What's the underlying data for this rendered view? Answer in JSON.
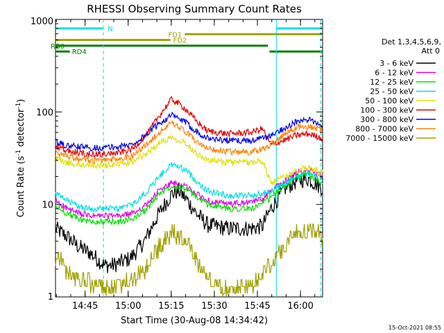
{
  "chart_data": {
    "type": "line",
    "title": "RHESSI Observing Summary Count Rates",
    "xlabel": "Start Time (30-Aug-08 14:34:42)",
    "ylabel_main": "Count Rate (s",
    "ylabel_sup1": "-1",
    "ylabel_mid": " detector",
    "ylabel_sup2": "-1",
    "ylabel_end": ")",
    "footer_date": "15-Oct-2021 08:55",
    "y_scale": "log",
    "ylim": [
      1,
      1000
    ],
    "xlim_minutes": [
      0,
      93
    ],
    "x_ticks": [
      {
        "label": "14:45",
        "minute": 10.3
      },
      {
        "label": "15:00",
        "minute": 25.3
      },
      {
        "label": "15:15",
        "minute": 40.3
      },
      {
        "label": "15:30",
        "minute": 55.3
      },
      {
        "label": "15:45",
        "minute": 70.3
      },
      {
        "label": "16:00",
        "minute": 85.3
      }
    ],
    "y_ticks": [
      {
        "label": "1",
        "value": 1
      },
      {
        "label": "10",
        "value": 10
      },
      {
        "label": "100",
        "value": 100
      },
      {
        "label": "1000",
        "value": 1000
      }
    ],
    "legend_header": [
      "Det 1,3,4,5,6,9,",
      "Att 0"
    ],
    "series": [
      {
        "name": "3 - 6 keV",
        "color": "#000000",
        "minutes": [
          0,
          4,
          8,
          12,
          17,
          20,
          26,
          31,
          35,
          38,
          40.5,
          43,
          46,
          49,
          53,
          60,
          68,
          72,
          75,
          80,
          84,
          88,
          93
        ],
        "values": [
          5.5,
          4.5,
          3.5,
          3,
          2.2,
          2.2,
          2.6,
          4,
          7,
          10,
          13,
          14,
          11,
          8,
          6,
          5.5,
          5.5,
          5.8,
          9,
          15,
          18,
          19,
          15
        ]
      },
      {
        "name": "6 - 12 keV",
        "color": "#e000e0",
        "minutes": [
          0,
          4,
          8,
          12,
          17,
          22,
          27,
          32,
          36,
          40.5,
          45,
          49,
          53,
          60,
          68,
          72,
          75,
          80,
          84,
          88,
          93
        ],
        "values": [
          11,
          9,
          8,
          7.5,
          7.5,
          7.5,
          8,
          10,
          14,
          17,
          16,
          13,
          11,
          10,
          10.5,
          11.5,
          14,
          18,
          22,
          24,
          20
        ]
      },
      {
        "name": "12 - 25 keV",
        "color": "#00e000",
        "minutes": [
          0,
          4,
          8,
          12,
          17,
          22,
          27,
          32,
          36,
          40.5,
          45,
          49,
          53,
          60,
          68,
          72,
          75,
          80,
          84,
          88,
          93
        ],
        "values": [
          9.5,
          8,
          7,
          6.5,
          6.5,
          6.5,
          7,
          9,
          13,
          16,
          15,
          12,
          10,
          9,
          9,
          10,
          12,
          16,
          20,
          21,
          17
        ]
      },
      {
        "name": "25 - 50 keV",
        "color": "#00e0e0",
        "minutes": [
          0,
          4,
          8,
          12,
          17,
          22,
          27,
          32,
          36,
          40.5,
          45,
          49,
          53,
          60,
          68,
          72,
          75,
          80,
          84,
          88,
          93
        ],
        "values": [
          13,
          11,
          9.5,
          9,
          9,
          9,
          10,
          14,
          20,
          27,
          24,
          18,
          14,
          12.5,
          12.5,
          13,
          14,
          17,
          20,
          22,
          19
        ]
      },
      {
        "name": "50 - 100 keV",
        "color": "#e0e000",
        "minutes": [
          0,
          4,
          8,
          12,
          17,
          22,
          27,
          32,
          36,
          40.5,
          45,
          49,
          53,
          60,
          68,
          72,
          75,
          80,
          84,
          88,
          93
        ],
        "values": [
          32,
          28,
          27,
          26.5,
          26.5,
          27,
          29,
          36,
          46,
          54,
          47,
          36,
          30,
          28.5,
          28.5,
          30,
          17,
          20,
          23,
          25,
          22
        ]
      },
      {
        "name": "100 - 300 keV",
        "color": "#e00000",
        "minutes": [
          0,
          4,
          8,
          12,
          17,
          22,
          27,
          32,
          36,
          40.5,
          45,
          49,
          53,
          60,
          68,
          72,
          75,
          80,
          84,
          88,
          93
        ],
        "values": [
          42,
          38,
          36,
          35,
          35,
          36,
          40,
          58,
          90,
          138,
          110,
          80,
          62,
          58,
          60,
          66,
          44,
          50,
          56,
          58,
          52
        ]
      },
      {
        "name": "300 - 800 keV",
        "color": "#0000e0",
        "minutes": [
          0,
          4,
          8,
          12,
          17,
          22,
          27,
          32,
          36,
          40.5,
          45,
          49,
          53,
          60,
          68,
          72,
          75,
          80,
          84,
          88,
          93
        ],
        "values": [
          47,
          43,
          42,
          41,
          41,
          42,
          45,
          58,
          75,
          92,
          78,
          62,
          52,
          49,
          49,
          52,
          55,
          68,
          78,
          82,
          72
        ]
      },
      {
        "name": "800 - 7000 keV",
        "color": "#ff8000",
        "minutes": [
          0,
          4,
          8,
          12,
          17,
          22,
          27,
          32,
          36,
          40.5,
          45,
          49,
          53,
          60,
          68,
          72,
          75,
          80,
          84,
          88,
          93
        ],
        "values": [
          37,
          33,
          31,
          30,
          30,
          31,
          34,
          45,
          60,
          75,
          62,
          48,
          40,
          37,
          37,
          39,
          45,
          58,
          68,
          70,
          64
        ]
      },
      {
        "name": "7000 - 15000 keV",
        "color": "#a0a000",
        "minutes": [
          0,
          4,
          8,
          12,
          17,
          22,
          27,
          32,
          36,
          39,
          42,
          46,
          50,
          54,
          60,
          66,
          70,
          72,
          75,
          79,
          83,
          87,
          90,
          93
        ],
        "values": [
          3,
          2,
          1.6,
          1.5,
          1.2,
          1.4,
          1.6,
          2.3,
          3.6,
          5,
          5,
          4,
          2.3,
          1.5,
          1.2,
          1.4,
          1.5,
          2,
          2.3,
          3.5,
          5,
          5.5,
          5.5,
          4.5
        ]
      }
    ],
    "flags": [
      {
        "label": "N",
        "color": "#00e0e0",
        "segments": [
          [
            0,
            16.5
          ],
          [
            77,
            93
          ]
        ],
        "level": 0
      },
      {
        "label": "FD1",
        "color": "#a0a000",
        "segments": [
          [
            45,
            93
          ]
        ],
        "level": 1
      },
      {
        "label": "FD2",
        "color": "#a0a000",
        "segments": [
          [
            0,
            40
          ]
        ],
        "level": 2
      },
      {
        "label": "RB0",
        "color": "#008000",
        "segments": [
          [
            0,
            74
          ]
        ],
        "level": 3
      },
      {
        "label": "RD4",
        "color": "#008000",
        "segments": [
          [
            0,
            5
          ],
          [
            74.5,
            93
          ]
        ],
        "level": 4
      }
    ],
    "night_markers": [
      {
        "minute": 16.7,
        "color": "#00e0e0",
        "dashed": true
      },
      {
        "minute": 76.9,
        "color": "#00e0e0",
        "dashed": false
      },
      {
        "minute": 92.4,
        "color": "#00e0e0",
        "dashed": true
      }
    ]
  }
}
